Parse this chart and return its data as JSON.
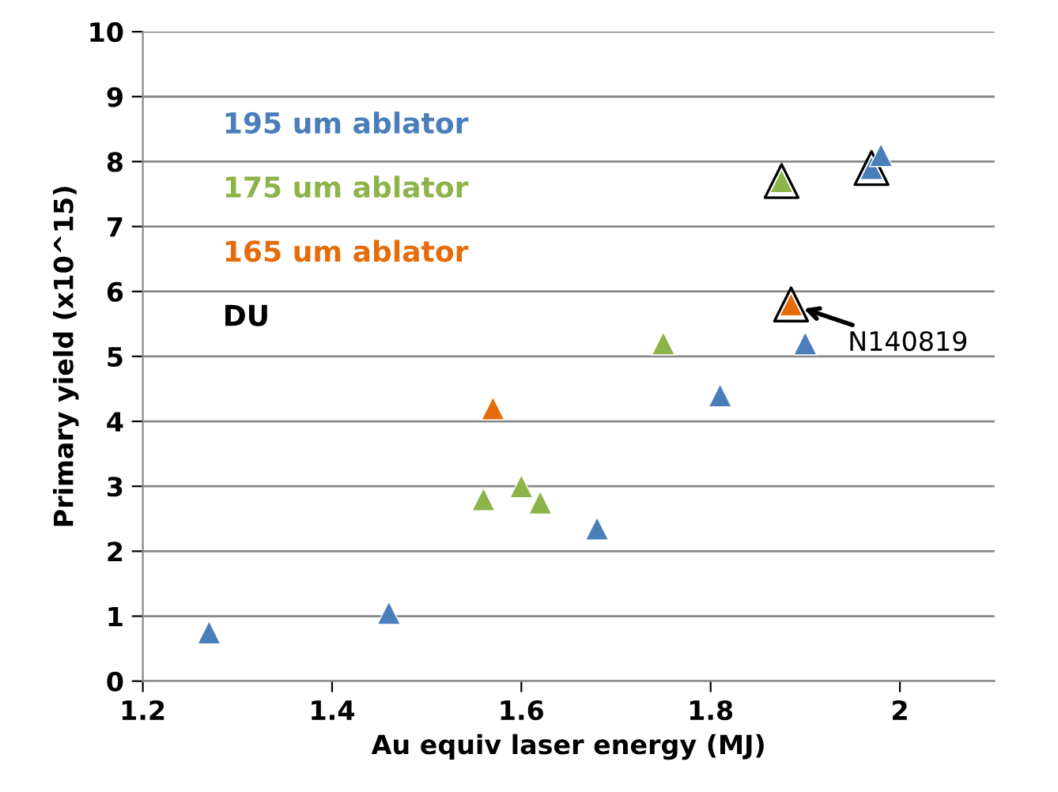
{
  "chart_data": {
    "type": "scatter",
    "xlabel": "Au equiv laser energy (MJ)",
    "ylabel": "Primary yield (x10^15)",
    "xlim": [
      1.2,
      2.1
    ],
    "xticks": [
      1.2,
      1.4,
      1.6,
      1.8,
      2
    ],
    "ylim": [
      0,
      10
    ],
    "yticks": [
      0,
      1,
      2,
      3,
      4,
      5,
      6,
      7,
      8,
      9,
      10
    ],
    "grid": "y",
    "legend": "top left",
    "marker": "triangle",
    "series": [
      {
        "name": "195 um ablator",
        "color": "#4a7ebb",
        "x": [
          1.27,
          1.46,
          1.68,
          1.81,
          1.9,
          1.97,
          1.98
        ],
        "values": [
          0.75,
          1.05,
          2.35,
          4.4,
          5.2,
          7.9,
          8.1
        ]
      },
      {
        "name": "175 um ablator",
        "color": "#8db449",
        "x": [
          1.56,
          1.6,
          1.62,
          1.75,
          1.875
        ],
        "values": [
          2.8,
          3.0,
          2.75,
          5.2,
          7.7
        ]
      },
      {
        "name": "165 um ablator",
        "color": "#e46c0a",
        "x": [
          1.57,
          1.885
        ],
        "values": [
          4.2,
          5.8
        ]
      },
      {
        "name": "DU",
        "color": "#000000",
        "x": [
          1.875,
          1.885,
          1.97
        ],
        "values": [
          7.7,
          5.8,
          7.9
        ]
      }
    ],
    "annotations": [
      {
        "text": "N140819",
        "x": 1.885,
        "y": 5.8
      }
    ]
  }
}
